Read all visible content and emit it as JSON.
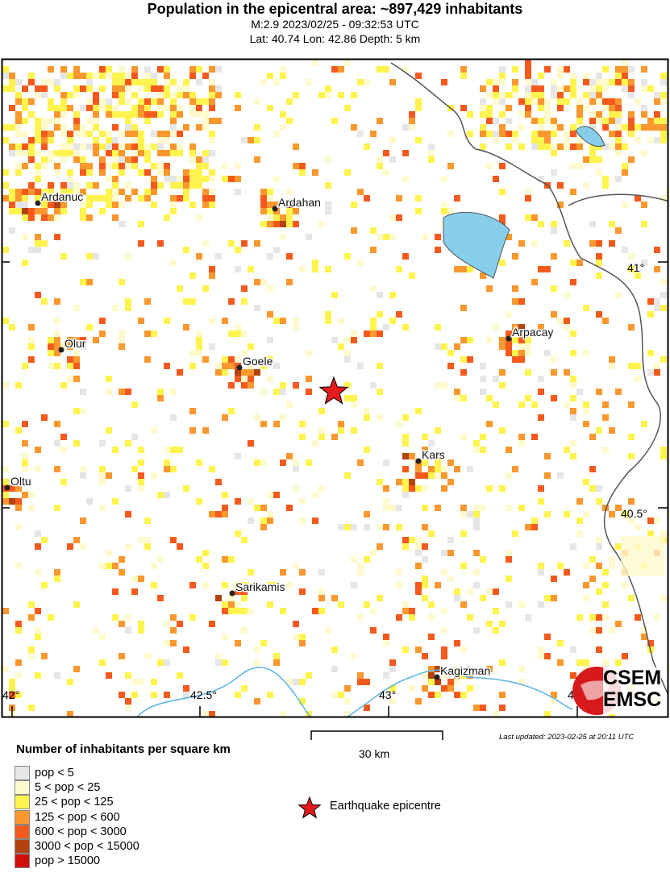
{
  "title": "Population in the epicentral area: ~897,429 inhabitants",
  "subtitle1": "M:2.9 2023/02/25 - 09:32:53 UTC",
  "subtitle2": "Lat: 40.74 Lon: 42.86 Depth: 5 km",
  "axes": {
    "lon_labels": [
      "42°",
      "42.5°",
      "43°",
      "43.5°"
    ],
    "lat_labels": [
      "41°",
      "40.5°"
    ]
  },
  "cities": [
    {
      "name": "Ardanuc"
    },
    {
      "name": "Ardahan"
    },
    {
      "name": "Olur"
    },
    {
      "name": "Goele"
    },
    {
      "name": "Arpacay"
    },
    {
      "name": "Kars"
    },
    {
      "name": "Oltu"
    },
    {
      "name": "Sarikamis"
    },
    {
      "name": "Kagizman"
    }
  ],
  "epicentre": {
    "lat": 40.74,
    "lon": 42.86,
    "color": "#e41a1c"
  },
  "logo": {
    "top": "CSEM",
    "bottom": "EMSC",
    "color": "#d7191c"
  },
  "scale_bar": {
    "label": "30 km"
  },
  "last_updated": "Last updated: 2023-02-25 at 20:11 UTC",
  "legend": {
    "title": "Number of inhabitants per square km",
    "items": [
      {
        "label": "pop < 5",
        "color": "#e6e6e6"
      },
      {
        "label": "5 < pop < 25",
        "color": "#fffacd"
      },
      {
        "label": "25 < pop < 125",
        "color": "#fff44f"
      },
      {
        "label": "125 < pop < 600",
        "color": "#f8982f"
      },
      {
        "label": "600 < pop < 3000",
        "color": "#f45a1e"
      },
      {
        "label": "3000 < pop < 15000",
        "color": "#b4420f"
      },
      {
        "label": "pop > 15000",
        "color": "#d10e0e"
      }
    ],
    "epicentre_label": "Earthquake epicentre"
  },
  "colors": {
    "water": "#87ceeb",
    "river": "#5ab4e6",
    "border": "#555555"
  }
}
